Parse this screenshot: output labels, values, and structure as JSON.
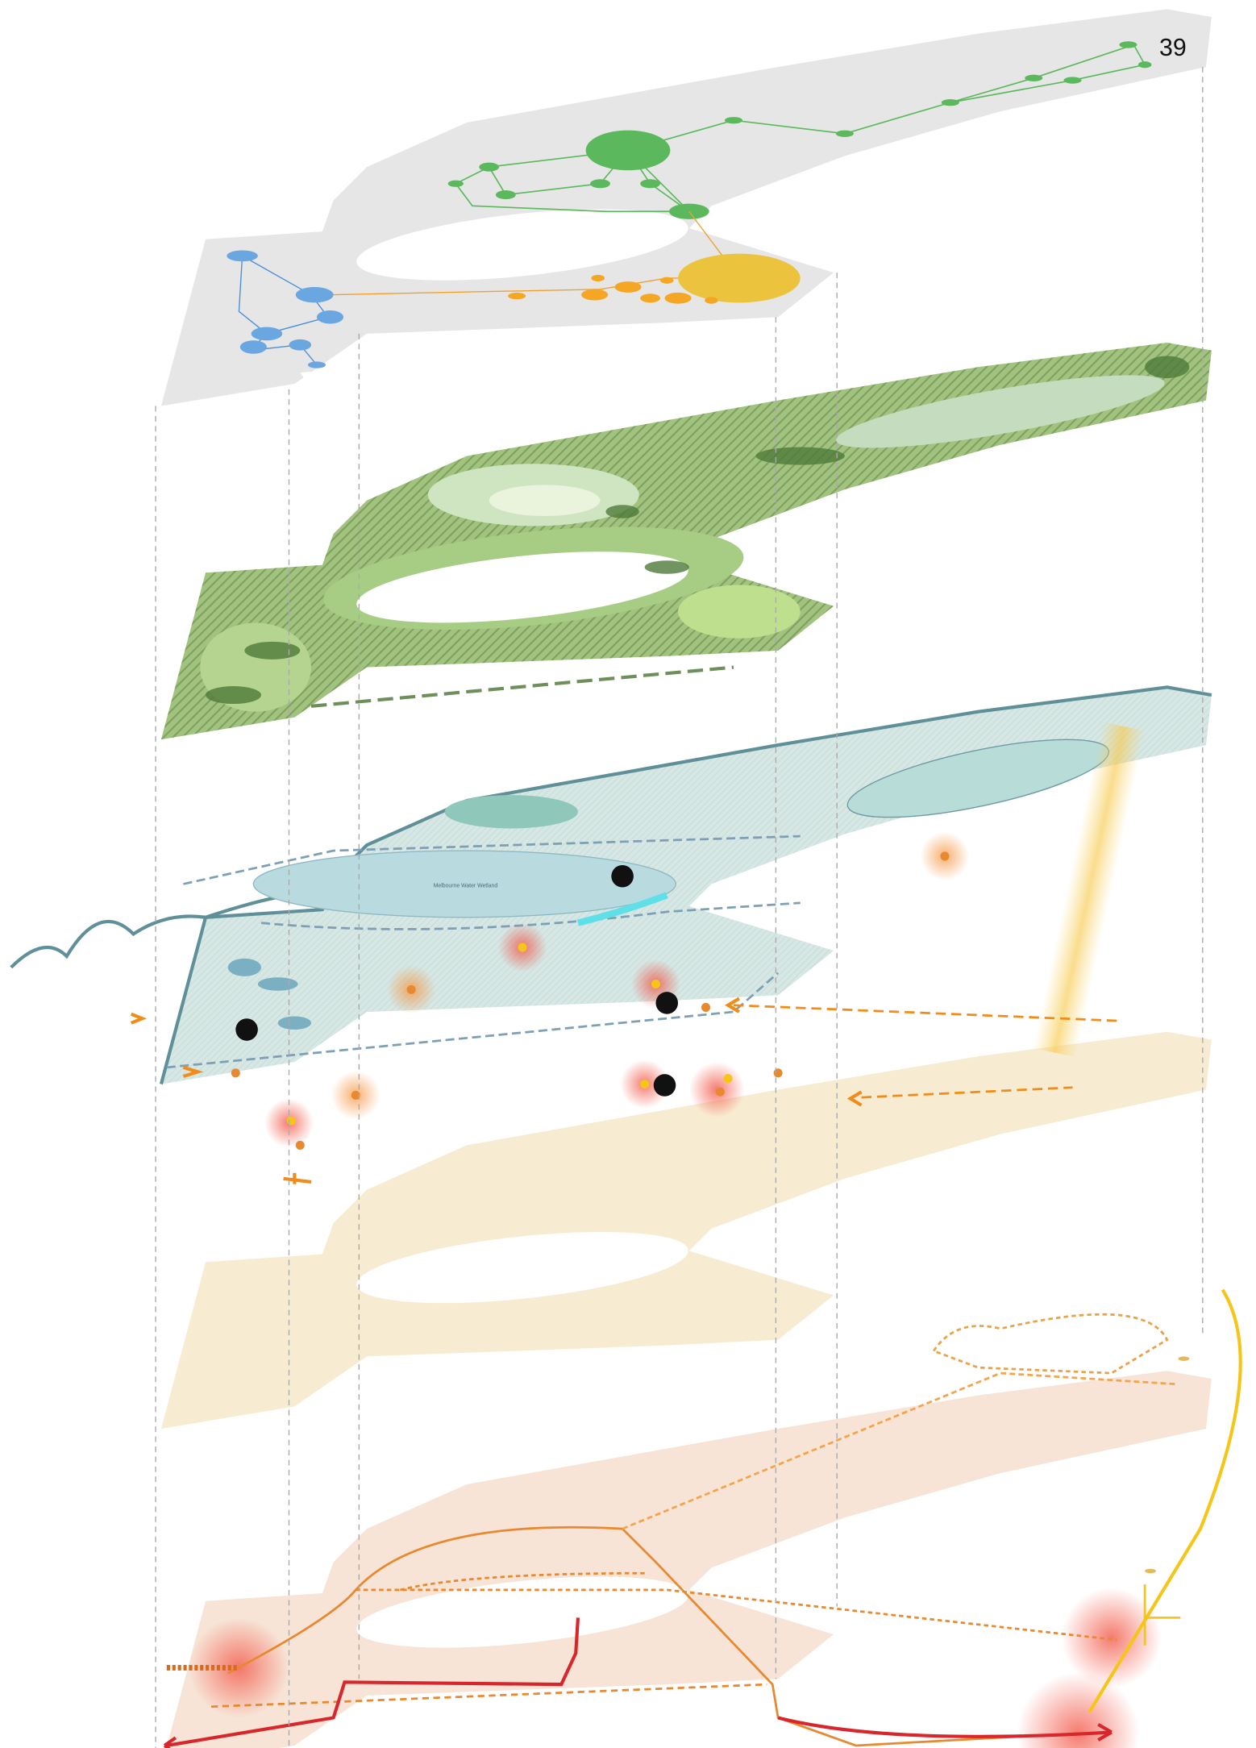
{
  "page_number": "39",
  "wetland_label": "Melbourne Water Wetland"
}
